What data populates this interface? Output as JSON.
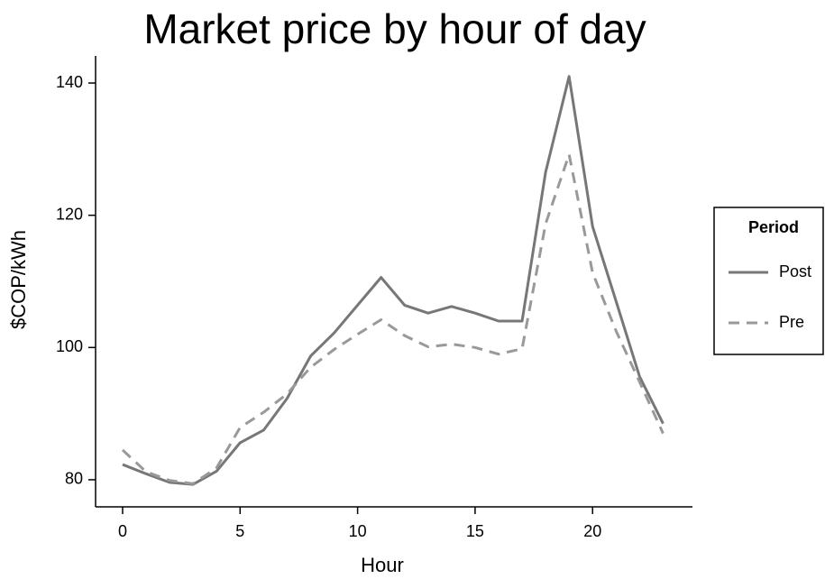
{
  "chart_data": {
    "type": "line",
    "title": "Market price by hour of day",
    "x_label": "Hour",
    "y_label": "$COP/kWh",
    "x": [
      0,
      1,
      2,
      3,
      4,
      5,
      6,
      7,
      8,
      9,
      10,
      11,
      12,
      13,
      14,
      15,
      16,
      17,
      18,
      19,
      20,
      21,
      22,
      23
    ],
    "series": [
      {
        "name": "Post",
        "color": "#777777",
        "line_style": "solid",
        "values": [
          82.3,
          80.9,
          79.6,
          79.3,
          81.3,
          85.6,
          87.5,
          92.3,
          98.7,
          102.2,
          106.4,
          110.6,
          106.4,
          105.2,
          106.2,
          105.2,
          104.0,
          104.0,
          126.5,
          141.0,
          118.3,
          107.0,
          95.6,
          88.5
        ]
      },
      {
        "name": "Pre",
        "color": "#999999",
        "line_style": "dashed",
        "values": [
          84.5,
          81.2,
          79.9,
          79.4,
          81.8,
          87.9,
          90.2,
          93.0,
          97.0,
          99.7,
          102.0,
          104.2,
          101.8,
          100.1,
          100.5,
          100.0,
          99.0,
          99.8,
          118.7,
          129.2,
          111.3,
          102.5,
          94.8,
          87.0
        ]
      }
    ],
    "legend_title": "Period",
    "legend_position": "right",
    "xlim": [
      -1.15,
      24.25
    ],
    "xticks": [
      0,
      5,
      10,
      15,
      20
    ],
    "ylim": [
      75.9,
      144.1
    ],
    "yticks": [
      80,
      100,
      120,
      140
    ],
    "grid": false
  }
}
